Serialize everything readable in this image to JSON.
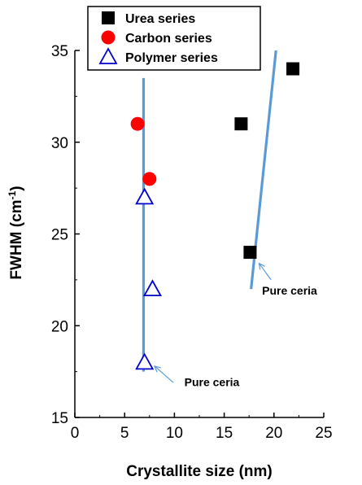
{
  "chart_data": {
    "type": "scatter",
    "xlabel": "Crystallite size (nm)",
    "ylabel": {
      "main": "FWHM (cm",
      "sup": "-1",
      "close": ")"
    },
    "xlim": [
      0,
      25
    ],
    "ylim": [
      15,
      35
    ],
    "xticks": [
      0,
      5,
      10,
      15,
      20,
      25
    ],
    "yticks": [
      15,
      20,
      25,
      30,
      35
    ],
    "grid": false,
    "legend_position": "top",
    "series": [
      {
        "name": "Urea series",
        "marker": "square",
        "color": "#000000",
        "points": [
          [
            16.7,
            31
          ],
          [
            17.6,
            24
          ],
          [
            21.9,
            34
          ]
        ]
      },
      {
        "name": "Carbon series",
        "marker": "circle",
        "color": "#ff0000",
        "points": [
          [
            6.3,
            31
          ],
          [
            7.5,
            28
          ]
        ]
      },
      {
        "name": "Polymer series",
        "marker": "triangle-open",
        "color": "#0000cc",
        "points": [
          [
            7.0,
            27
          ],
          [
            7.8,
            22
          ],
          [
            7.0,
            18
          ]
        ]
      }
    ],
    "trend_lines": [
      {
        "color": "#5b9bd5",
        "from": [
          6.9,
          17.5
        ],
        "to": [
          6.9,
          33.5
        ]
      },
      {
        "color": "#5b9bd5",
        "from": [
          17.7,
          22
        ],
        "to": [
          20.2,
          35
        ]
      }
    ],
    "annotations": [
      {
        "text": "Pure ceria",
        "text_at": [
          18.8,
          21.7
        ],
        "arrow_from": [
          19.7,
          22.5
        ],
        "arrow_to": [
          18.5,
          23.4
        ]
      },
      {
        "text": "Pure ceria",
        "text_at": [
          11.0,
          16.7
        ],
        "arrow_from": [
          9.9,
          16.9
        ],
        "arrow_to": [
          8.0,
          17.8
        ]
      }
    ]
  }
}
